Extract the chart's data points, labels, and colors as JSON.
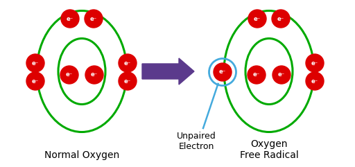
{
  "bg_color": "#ffffff",
  "ring_color": "#00aa00",
  "electron_color": "#dd0000",
  "electron_text_color": "#ffffff",
  "arrow_color": "#5b3a8c",
  "callout_color": "#44aadd",
  "label_normal": "Normal Oxygen",
  "label_radical": "Oxygen\nFree Radical",
  "label_unpaired": "Unpaired\nElectron",
  "electron_label": "e⁻",
  "figw": 5.12,
  "figh": 2.41,
  "dpi": 100
}
